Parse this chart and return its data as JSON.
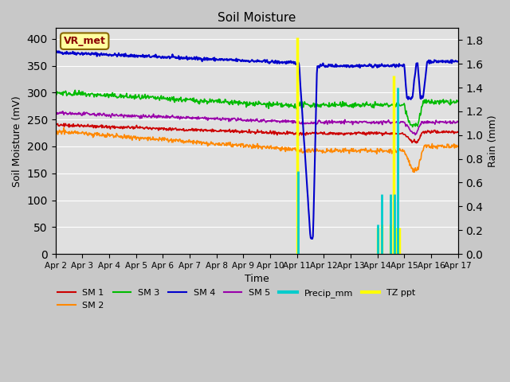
{
  "title": "Soil Moisture",
  "ylabel_left": "Soil Moisture (mV)",
  "ylabel_right": "Rain (mm)",
  "xlabel": "Time",
  "annotation": "VR_met",
  "x_tick_labels": [
    "Apr 2",
    "Apr 3",
    "Apr 4",
    "Apr 5",
    "Apr 6",
    "Apr 7",
    "Apr 8",
    "Apr 9",
    "Apr 10",
    "Apr 11",
    "Apr 12",
    "Apr 13",
    "Apr 14",
    "Apr 15",
    "Apr 16",
    "Apr 17"
  ],
  "ylim_left": [
    0,
    420
  ],
  "ylim_right": [
    0.0,
    1.9
  ],
  "fig_bg_color": "#c8c8c8",
  "plot_bg_color": "#e0e0e0",
  "sm1_color": "#cc0000",
  "sm2_color": "#ff8800",
  "sm3_color": "#00bb00",
  "sm4_color": "#0000cc",
  "sm5_color": "#9900aa",
  "precip_color": "#00cccc",
  "tzppt_color": "#ffff00",
  "legend_labels": [
    "SM 1",
    "SM 2",
    "SM 3",
    "SM 4",
    "SM 5",
    "Precip_mm",
    "TZ ppt"
  ]
}
